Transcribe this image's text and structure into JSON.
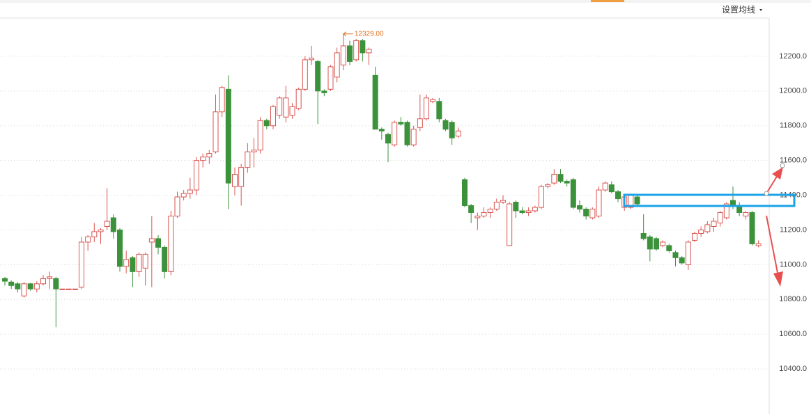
{
  "chart_data": {
    "type": "candlestick",
    "button_label": "设置均线",
    "max_label": "12329.00",
    "up_color": "#d9534f",
    "down_color": "#3b923b",
    "ylim": [
      10148,
      12420
    ],
    "yticks": [
      {
        "value": 10400,
        "label": "10400.0"
      },
      {
        "value": 10600,
        "label": "10600.0"
      },
      {
        "value": 10800,
        "label": "10800.0"
      },
      {
        "value": 11000,
        "label": "11000.0"
      },
      {
        "value": 11200,
        "label": "11200.0"
      },
      {
        "value": 11400,
        "label": "11400.0"
      },
      {
        "value": 11600,
        "label": "11600.0"
      },
      {
        "value": 11800,
        "label": "11800.0"
      },
      {
        "value": 12000,
        "label": "12000.0"
      },
      {
        "value": 12200,
        "label": "12200.0"
      }
    ],
    "grid": true,
    "open": [
      10920,
      10900,
      10890,
      10820,
      10890,
      10860,
      10890,
      10920,
      10920,
      10860,
      10860,
      10860,
      10870,
      11130,
      11160,
      11190,
      11220,
      11270,
      11200,
      10990,
      11040,
      10960,
      10980,
      11130,
      11150,
      11100,
      10960,
      11280,
      11390,
      11410,
      11430,
      11600,
      11620,
      11650,
      11880,
      12010,
      11450,
      11450,
      11560,
      11650,
      11660,
      11830,
      11800,
      11860,
      11850,
      11860,
      11900,
      12010,
      12180,
      12170,
      12000,
      12010,
      12080,
      12150,
      12260,
      12180,
      12290,
      12220,
      12090,
      11780,
      11750,
      11690,
      11820,
      11820,
      11690,
      11790,
      11840,
      11940,
      11940,
      11830,
      11820,
      11740,
      11490,
      11340,
      11270,
      11280,
      11300,
      11320,
      11360,
      11110,
      11360,
      11310,
      11300,
      11310,
      11330,
      11450,
      11470,
      11520,
      11480,
      11490,
      11340,
      11320,
      11270,
      11280,
      11430,
      11460,
      11420,
      11330,
      11330,
      11390,
      11180,
      11160,
      11150,
      11110,
      11110,
      11070,
      11040,
      11000,
      11140,
      11180,
      11190,
      11220,
      11240,
      11270,
      11370,
      11340,
      11280,
      11300,
      11110
    ],
    "high": [
      10930,
      10910,
      10900,
      10900,
      10895,
      10905,
      10940,
      10960,
      10930,
      10860,
      10860,
      10860,
      11160,
      11170,
      11240,
      11210,
      11440,
      11290,
      11210,
      11080,
      11050,
      11070,
      11070,
      11280,
      11170,
      11110,
      11310,
      11420,
      11430,
      11500,
      11620,
      11640,
      11660,
      11980,
      12030,
      12090,
      11560,
      11580,
      11700,
      11730,
      11850,
      11840,
      11920,
      11970,
      12030,
      11930,
      12020,
      12200,
      12260,
      12180,
      12010,
      12150,
      12250,
      12329,
      12290,
      12300,
      12300,
      12250,
      12140,
      11790,
      11760,
      11830,
      11850,
      11830,
      11800,
      11980,
      11980,
      11960,
      11960,
      11840,
      11830,
      11790,
      11500,
      11350,
      11300,
      11330,
      11330,
      11380,
      11400,
      11360,
      11370,
      11330,
      11330,
      11340,
      11460,
      11470,
      11550,
      11550,
      11490,
      11500,
      11370,
      11330,
      11330,
      11450,
      11480,
      11480,
      11430,
      11400,
      11410,
      11400,
      11290,
      11170,
      11160,
      11140,
      11120,
      11080,
      11050,
      11140,
      11190,
      11220,
      11250,
      11270,
      11310,
      11360,
      11450,
      11360,
      11310,
      11310,
      11140
    ],
    "low": [
      10880,
      10860,
      10840,
      10810,
      10850,
      10840,
      10880,
      10860,
      10640,
      10860,
      10860,
      10860,
      10860,
      11080,
      11130,
      11120,
      11200,
      11150,
      10960,
      10950,
      10870,
      10930,
      10880,
      10870,
      11060,
      10920,
      10940,
      11270,
      11370,
      11380,
      11400,
      11560,
      11580,
      11640,
      11850,
      11320,
      11400,
      11340,
      11530,
      11560,
      11640,
      11780,
      11780,
      11840,
      11820,
      11840,
      11890,
      12000,
      12150,
      11810,
      11970,
      12000,
      12050,
      12120,
      12150,
      12170,
      12170,
      12150,
      11780,
      11720,
      11590,
      11680,
      11800,
      11680,
      11680,
      11770,
      11830,
      11930,
      11820,
      11770,
      11690,
      11730,
      11330,
      11240,
      11200,
      11270,
      11270,
      11310,
      11350,
      11110,
      11270,
      11290,
      11280,
      11300,
      11320,
      11440,
      11460,
      11470,
      11450,
      11320,
      11300,
      11260,
      11260,
      11270,
      11420,
      11410,
      11360,
      11310,
      11320,
      11340,
      11140,
      11020,
      11080,
      11100,
      11070,
      10990,
      11000,
      10970,
      11130,
      11160,
      11180,
      11190,
      11220,
      11260,
      11320,
      11280,
      11260,
      11110,
      11100
    ],
    "close": [
      10905,
      10880,
      10860,
      10890,
      10860,
      10890,
      10920,
      10930,
      10860,
      10860,
      10860,
      10860,
      11130,
      11160,
      11190,
      11200,
      11250,
      11190,
      10990,
      11030,
      10960,
      11060,
      11060,
      11150,
      11100,
      10960,
      11280,
      11390,
      11410,
      11430,
      11600,
      11620,
      11640,
      11880,
      12020,
      11470,
      11520,
      11560,
      11650,
      11660,
      11830,
      11800,
      11910,
      11960,
      11960,
      11910,
      12010,
      12180,
      12190,
      12000,
      11990,
      12140,
      12220,
      12260,
      12170,
      12290,
      12220,
      12240,
      11780,
      11770,
      11700,
      11820,
      11810,
      11690,
      11780,
      11840,
      11960,
      11950,
      11840,
      11780,
      11730,
      11770,
      11340,
      11300,
      11280,
      11300,
      11320,
      11360,
      11370,
      11350,
      11310,
      11300,
      11310,
      11330,
      11450,
      11460,
      11520,
      11480,
      11470,
      11330,
      11320,
      11280,
      11320,
      11430,
      11470,
      11420,
      11380,
      11390,
      11400,
      11350,
      11150,
      11090,
      11090,
      11130,
      11080,
      11040,
      11010,
      11130,
      11180,
      11200,
      11230,
      11250,
      11300,
      11350,
      11340,
      11300,
      11300,
      11120,
      11120
    ]
  }
}
